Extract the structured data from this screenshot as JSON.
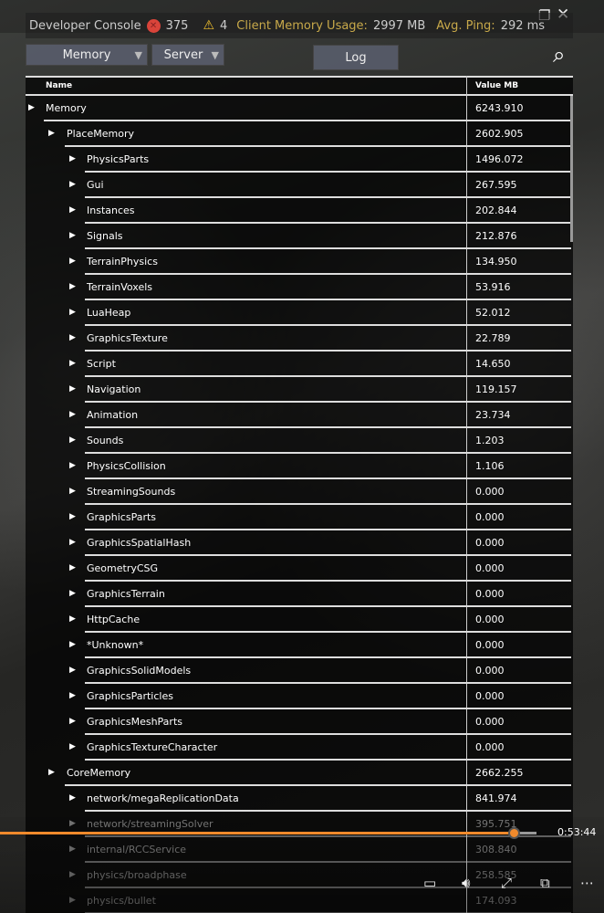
{
  "console": {
    "title": "Developer Console",
    "errors": "375",
    "warnings": "4",
    "memory_label": "Client Memory Usage:",
    "memory_value": "2997 MB",
    "ping_label": "Avg. Ping:",
    "ping_value": "292 ms"
  },
  "toolbar": {
    "view_select": "Memory",
    "target_select": "Server",
    "log_label": "Log"
  },
  "table": {
    "col_name": "Name",
    "col_value": "Value MB",
    "rows": [
      {
        "level": 0,
        "name": "Memory",
        "value": "6243.910"
      },
      {
        "level": 1,
        "name": "PlaceMemory",
        "value": "2602.905"
      },
      {
        "level": 2,
        "name": "PhysicsParts",
        "value": "1496.072"
      },
      {
        "level": 2,
        "name": "Gui",
        "value": "267.595"
      },
      {
        "level": 2,
        "name": "Instances",
        "value": "202.844"
      },
      {
        "level": 2,
        "name": "Signals",
        "value": "212.876"
      },
      {
        "level": 2,
        "name": "TerrainPhysics",
        "value": "134.950"
      },
      {
        "level": 2,
        "name": "TerrainVoxels",
        "value": "53.916"
      },
      {
        "level": 2,
        "name": "LuaHeap",
        "value": "52.012"
      },
      {
        "level": 2,
        "name": "GraphicsTexture",
        "value": "22.789"
      },
      {
        "level": 2,
        "name": "Script",
        "value": "14.650"
      },
      {
        "level": 2,
        "name": "Navigation",
        "value": "119.157"
      },
      {
        "level": 2,
        "name": "Animation",
        "value": "23.734"
      },
      {
        "level": 2,
        "name": "Sounds",
        "value": "1.203"
      },
      {
        "level": 2,
        "name": "PhysicsCollision",
        "value": "1.106"
      },
      {
        "level": 2,
        "name": "StreamingSounds",
        "value": "0.000"
      },
      {
        "level": 2,
        "name": "GraphicsParts",
        "value": "0.000"
      },
      {
        "level": 2,
        "name": "GraphicsSpatialHash",
        "value": "0.000"
      },
      {
        "level": 2,
        "name": "GeometryCSG",
        "value": "0.000"
      },
      {
        "level": 2,
        "name": "GraphicsTerrain",
        "value": "0.000"
      },
      {
        "level": 2,
        "name": "HttpCache",
        "value": "0.000"
      },
      {
        "level": 2,
        "name": "*Unknown*",
        "value": "0.000"
      },
      {
        "level": 2,
        "name": "GraphicsSolidModels",
        "value": "0.000"
      },
      {
        "level": 2,
        "name": "GraphicsParticles",
        "value": "0.000"
      },
      {
        "level": 2,
        "name": "GraphicsMeshParts",
        "value": "0.000"
      },
      {
        "level": 2,
        "name": "GraphicsTextureCharacter",
        "value": "0.000"
      },
      {
        "level": 1,
        "name": "CoreMemory",
        "value": "2662.255"
      },
      {
        "level": 2,
        "name": "network/megaReplicationData",
        "value": "841.974"
      },
      {
        "level": 2,
        "name": "network/streamingSolver",
        "value": "395.751"
      },
      {
        "level": 2,
        "name": "internal/RCCService",
        "value": "308.840"
      },
      {
        "level": 2,
        "name": "physics/broadphase",
        "value": "258.585"
      },
      {
        "level": 2,
        "name": "physics/bullet",
        "value": "174.093"
      }
    ]
  },
  "player": {
    "time": "0:53:44",
    "progress": 0.96
  }
}
